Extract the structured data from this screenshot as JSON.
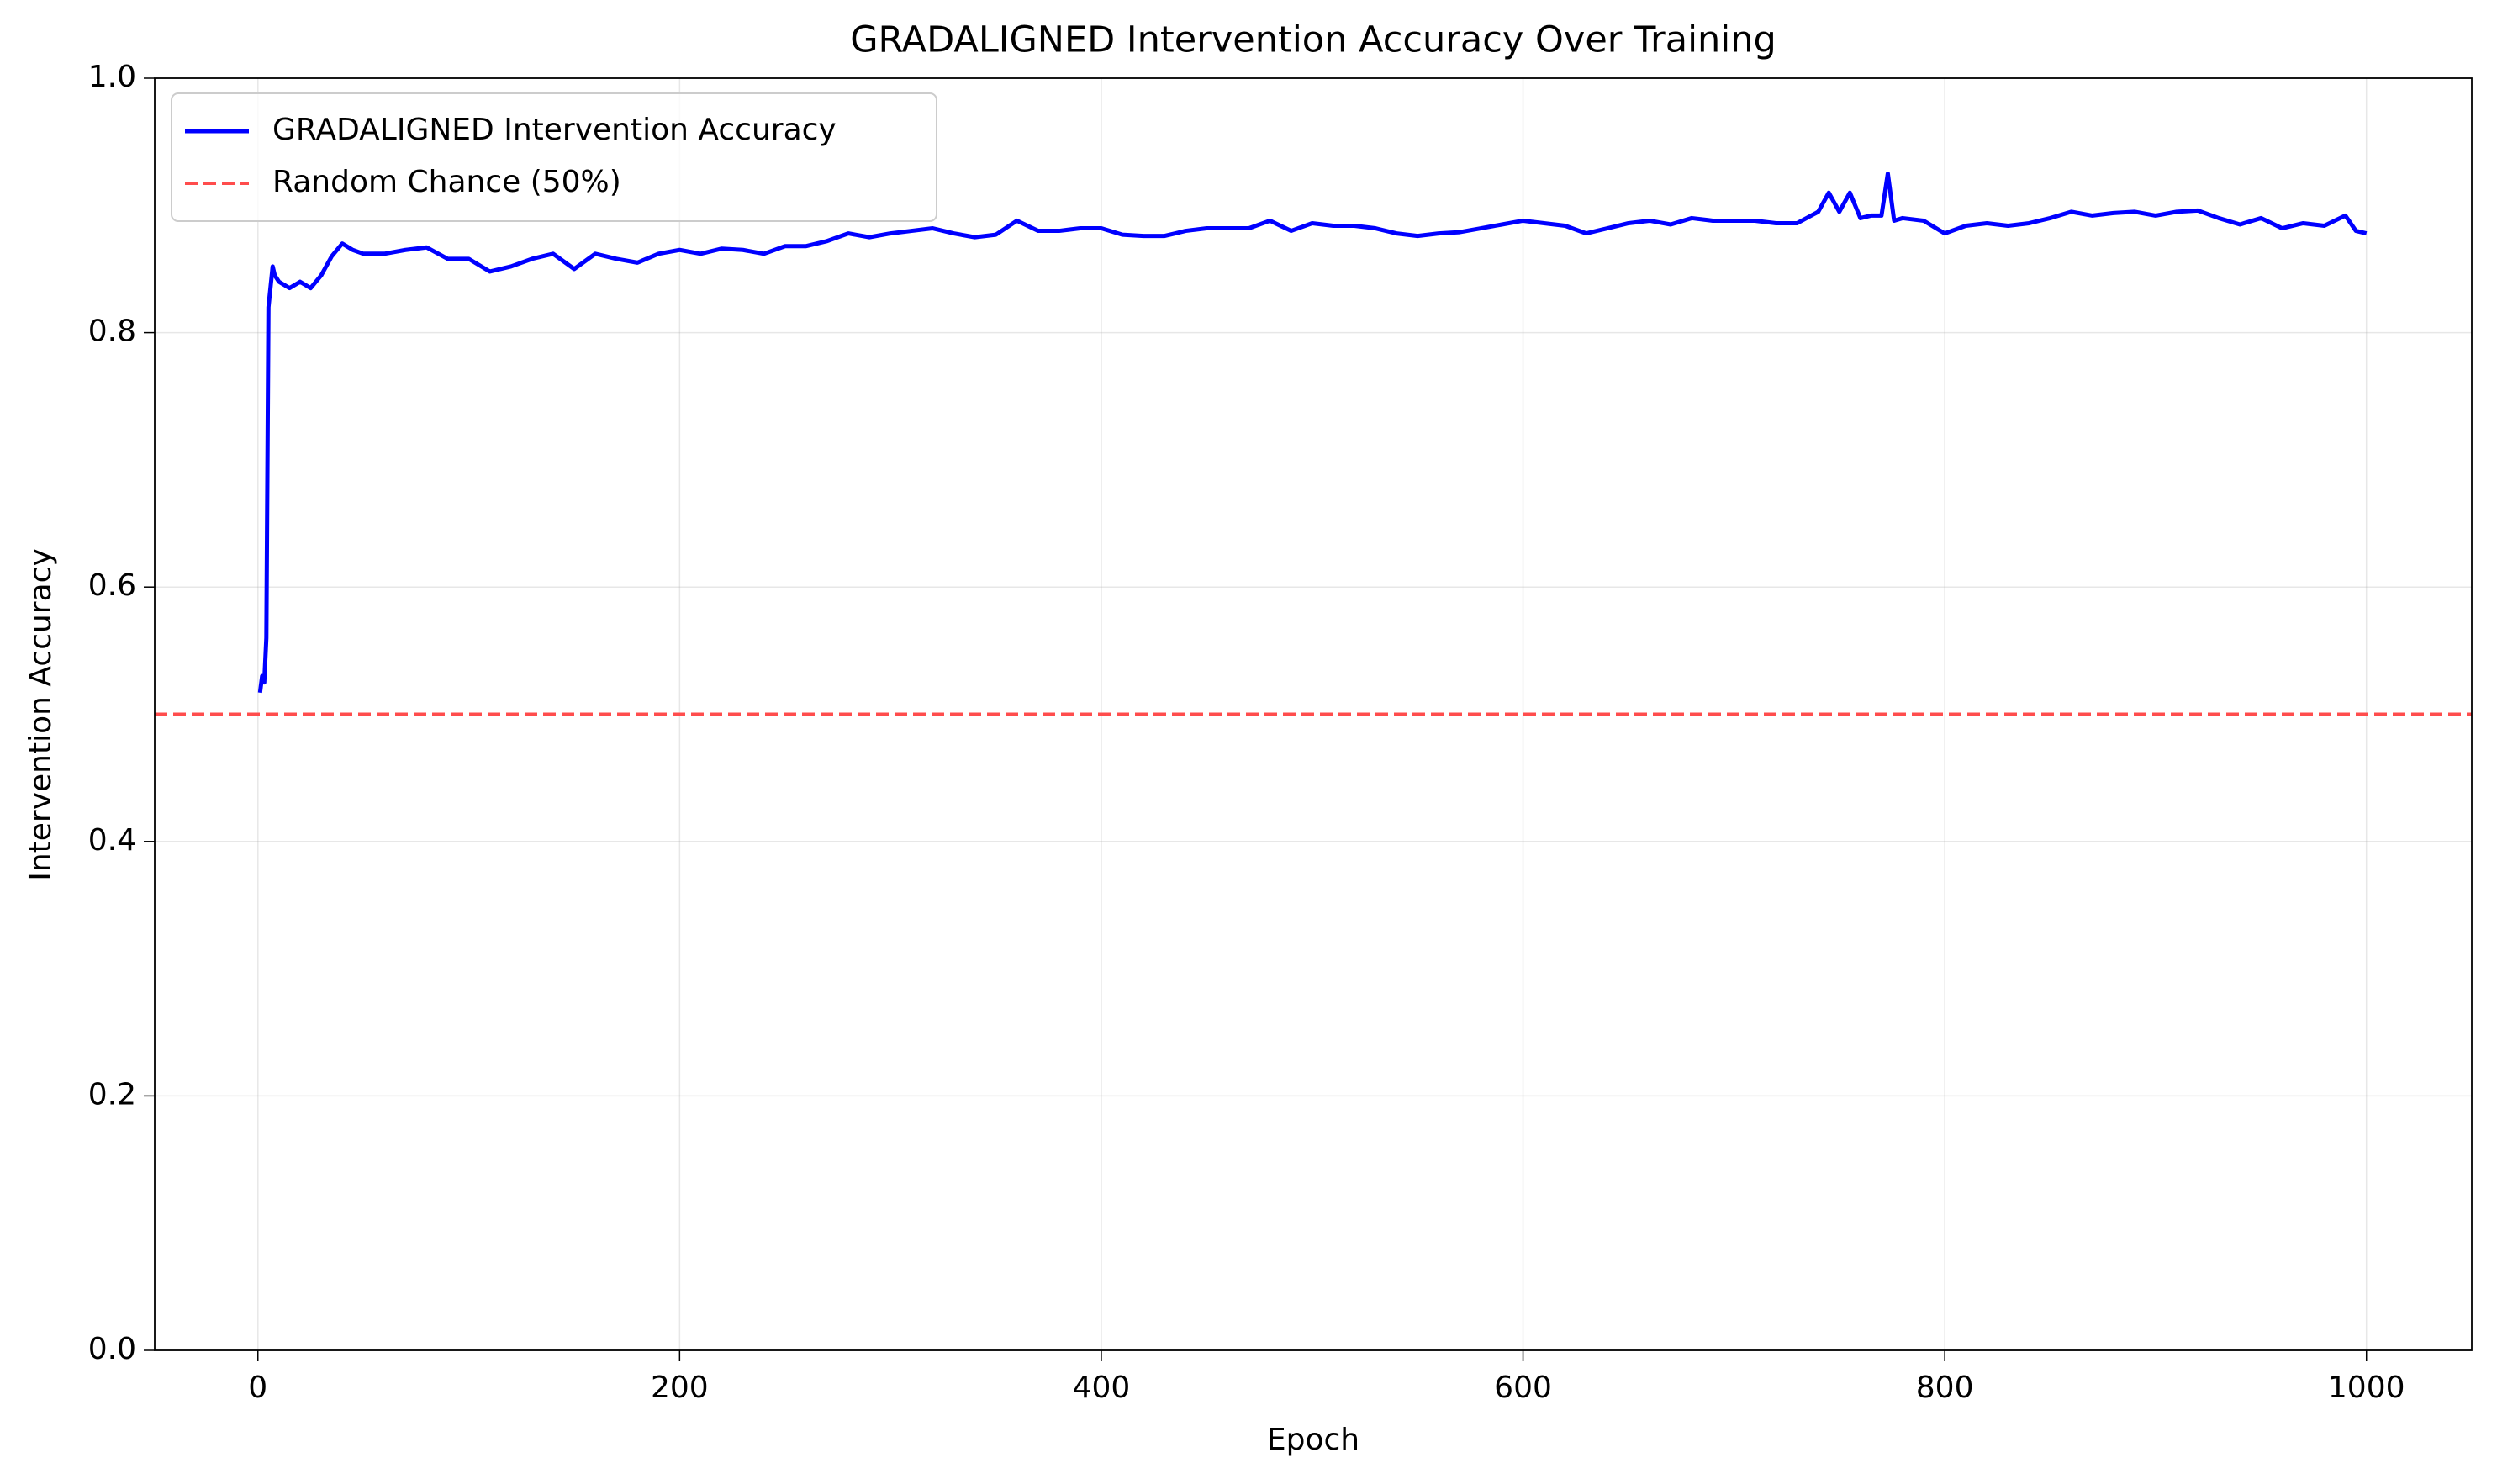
{
  "chart_data": {
    "type": "line",
    "title": "GRADALIGNED Intervention Accuracy Over Training",
    "x_label": "Epoch",
    "y_label": "Intervention Accuracy",
    "x": [
      1,
      2,
      3,
      4,
      5,
      7,
      8,
      10,
      15,
      20,
      25,
      30,
      35,
      40,
      45,
      50,
      60,
      70,
      80,
      90,
      100,
      110,
      120,
      130,
      140,
      150,
      160,
      170,
      180,
      190,
      200,
      210,
      220,
      230,
      240,
      250,
      260,
      270,
      280,
      290,
      300,
      310,
      320,
      330,
      340,
      350,
      360,
      370,
      380,
      390,
      400,
      410,
      420,
      430,
      440,
      450,
      460,
      470,
      480,
      490,
      500,
      510,
      520,
      530,
      540,
      550,
      560,
      570,
      580,
      590,
      600,
      610,
      620,
      630,
      640,
      650,
      660,
      670,
      680,
      690,
      700,
      710,
      720,
      730,
      740,
      745,
      750,
      755,
      760,
      765,
      770,
      773,
      776,
      780,
      790,
      800,
      810,
      820,
      830,
      840,
      850,
      860,
      870,
      880,
      890,
      900,
      910,
      920,
      930,
      940,
      950,
      960,
      970,
      980,
      990,
      995,
      1000
    ],
    "series": [
      {
        "name": "GRADALIGNED Intervention Accuracy",
        "color": "#0000ff",
        "values": [
          0.517,
          0.53,
          0.525,
          0.56,
          0.82,
          0.852,
          0.845,
          0.84,
          0.835,
          0.84,
          0.835,
          0.845,
          0.86,
          0.87,
          0.865,
          0.862,
          0.862,
          0.865,
          0.867,
          0.858,
          0.858,
          0.848,
          0.852,
          0.858,
          0.862,
          0.85,
          0.862,
          0.858,
          0.855,
          0.862,
          0.865,
          0.862,
          0.866,
          0.865,
          0.862,
          0.868,
          0.868,
          0.872,
          0.878,
          0.875,
          0.878,
          0.88,
          0.882,
          0.878,
          0.875,
          0.877,
          0.888,
          0.88,
          0.88,
          0.882,
          0.882,
          0.877,
          0.876,
          0.876,
          0.88,
          0.882,
          0.882,
          0.882,
          0.888,
          0.88,
          0.886,
          0.884,
          0.884,
          0.882,
          0.878,
          0.876,
          0.878,
          0.879,
          0.882,
          0.885,
          0.888,
          0.886,
          0.884,
          0.878,
          0.882,
          0.886,
          0.888,
          0.885,
          0.89,
          0.888,
          0.888,
          0.888,
          0.886,
          0.886,
          0.895,
          0.91,
          0.895,
          0.91,
          0.89,
          0.892,
          0.892,
          0.925,
          0.888,
          0.89,
          0.888,
          0.878,
          0.884,
          0.886,
          0.884,
          0.886,
          0.89,
          0.895,
          0.892,
          0.894,
          0.895,
          0.892,
          0.895,
          0.896,
          0.89,
          0.885,
          0.89,
          0.882,
          0.886,
          0.884,
          0.892,
          0.88,
          0.878
        ]
      }
    ],
    "hlines": [
      {
        "name": "Random Chance (50%)",
        "value": 0.5,
        "color": "#ff4d4d"
      }
    ],
    "xlim": [
      -48.95,
      1049.95
    ],
    "ylim": [
      0,
      1
    ],
    "xticks": [
      0,
      200,
      400,
      600,
      800,
      1000
    ],
    "yticks": [
      {
        "value": 0,
        "label": "0.0"
      },
      0.2,
      0.4,
      0.6,
      0.8,
      {
        "value": 1,
        "label": "1.0"
      }
    ],
    "grid": true,
    "legend": "upper-left"
  }
}
